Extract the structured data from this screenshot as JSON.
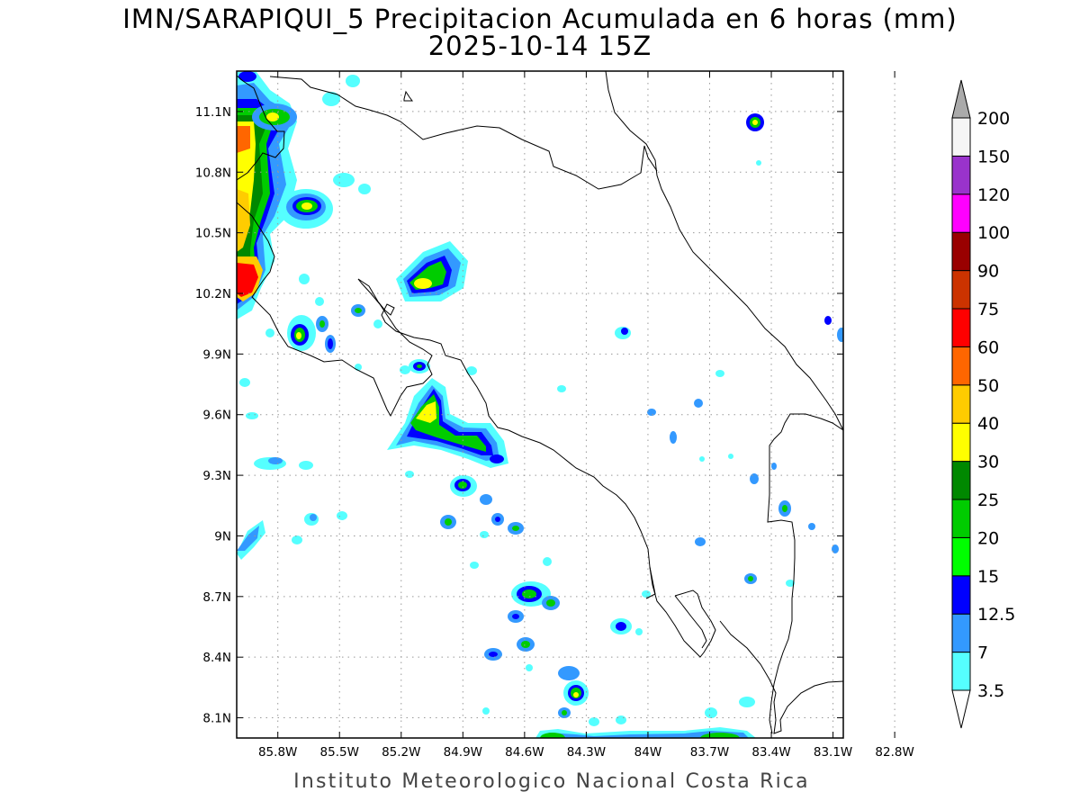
{
  "title": {
    "line1": "IMN/SARAPIQUI_5 Precipitacion Acumulada en 6 horas (mm)",
    "line2": "2025-10-14 15Z"
  },
  "footer": "Instituto Meteorologico Nacional Costa Rica",
  "map": {
    "lon_range": [
      -86.0,
      -83.05
    ],
    "lat_range": [
      8.0,
      11.3
    ],
    "lon_ticks": [
      {
        "value": -85.8,
        "label": "85.8W"
      },
      {
        "value": -85.5,
        "label": "85.5W"
      },
      {
        "value": -85.2,
        "label": "85.2W"
      },
      {
        "value": -84.9,
        "label": "84.9W"
      },
      {
        "value": -84.6,
        "label": "84.6W"
      },
      {
        "value": -84.3,
        "label": "84.3W"
      },
      {
        "value": -84.0,
        "label": "84W"
      },
      {
        "value": -83.7,
        "label": "83.7W"
      },
      {
        "value": -83.4,
        "label": "83.4W"
      },
      {
        "value": -83.1,
        "label": "83.1W"
      },
      {
        "value": -82.8,
        "label": "82.8W"
      }
    ],
    "lat_ticks": [
      {
        "value": 11.1,
        "label": "11.1N"
      },
      {
        "value": 10.8,
        "label": "10.8N"
      },
      {
        "value": 10.5,
        "label": "10.5N"
      },
      {
        "value": 10.2,
        "label": "10.2N"
      },
      {
        "value": 9.9,
        "label": "9.9N"
      },
      {
        "value": 9.6,
        "label": "9.6N"
      },
      {
        "value": 9.3,
        "label": "9.3N"
      },
      {
        "value": 9.0,
        "label": "9N"
      },
      {
        "value": 8.7,
        "label": "8.7N"
      },
      {
        "value": 8.4,
        "label": "8.4N"
      },
      {
        "value": 8.1,
        "label": "8.1N"
      }
    ],
    "grid": true
  },
  "legend": {
    "levels": [
      {
        "label": "3.5",
        "color": "#55ffff"
      },
      {
        "label": "7",
        "color": "#3399ff"
      },
      {
        "label": "12.5",
        "color": "#0000ff"
      },
      {
        "label": "15",
        "color": "#00ff00"
      },
      {
        "label": "20",
        "color": "#00cc00"
      },
      {
        "label": "25",
        "color": "#008800"
      },
      {
        "label": "30",
        "color": "#ffff00"
      },
      {
        "label": "40",
        "color": "#ffcc00"
      },
      {
        "label": "50",
        "color": "#ff6600"
      },
      {
        "label": "60",
        "color": "#ff0000"
      },
      {
        "label": "75",
        "color": "#cc3300"
      },
      {
        "label": "90",
        "color": "#990000"
      },
      {
        "label": "100",
        "color": "#ff00ff"
      },
      {
        "label": "120",
        "color": "#9933cc"
      },
      {
        "label": "150",
        "color": "#f5f5f5"
      },
      {
        "label": "200",
        "color": "#aaaaaa"
      }
    ]
  }
}
